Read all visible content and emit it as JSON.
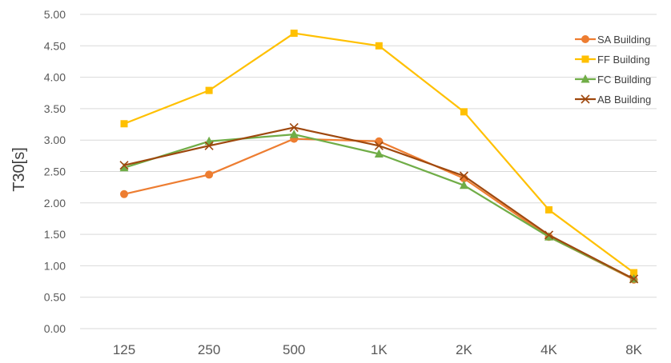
{
  "chart_data": {
    "type": "line",
    "title": "",
    "xlabel": "",
    "ylabel": "T30[s]",
    "categories": [
      "125",
      "250",
      "500",
      "1K",
      "2K",
      "4K",
      "8K"
    ],
    "ylim": [
      0,
      5
    ],
    "yticks": [
      "0.00",
      "0.50",
      "1.00",
      "1.50",
      "2.00",
      "2.50",
      "3.00",
      "3.50",
      "4.00",
      "4.50",
      "5.00"
    ],
    "grid": true,
    "legend_position": "right",
    "series": [
      {
        "name": "SA Building",
        "color": "#ED7D31",
        "marker": "circle",
        "values": [
          2.14,
          2.45,
          3.02,
          2.98,
          2.39,
          1.46,
          0.78
        ]
      },
      {
        "name": "FF Building",
        "color": "#FFC000",
        "marker": "square",
        "values": [
          3.26,
          3.79,
          4.7,
          4.5,
          3.45,
          1.89,
          0.89
        ]
      },
      {
        "name": "FC Building",
        "color": "#70AD47",
        "marker": "triangle",
        "values": [
          2.56,
          2.98,
          3.09,
          2.78,
          2.28,
          1.46,
          0.79
        ]
      },
      {
        "name": "AB Building",
        "color": "#9E480E",
        "marker": "x",
        "values": [
          2.6,
          2.91,
          3.2,
          2.91,
          2.43,
          1.49,
          0.79
        ]
      }
    ]
  }
}
